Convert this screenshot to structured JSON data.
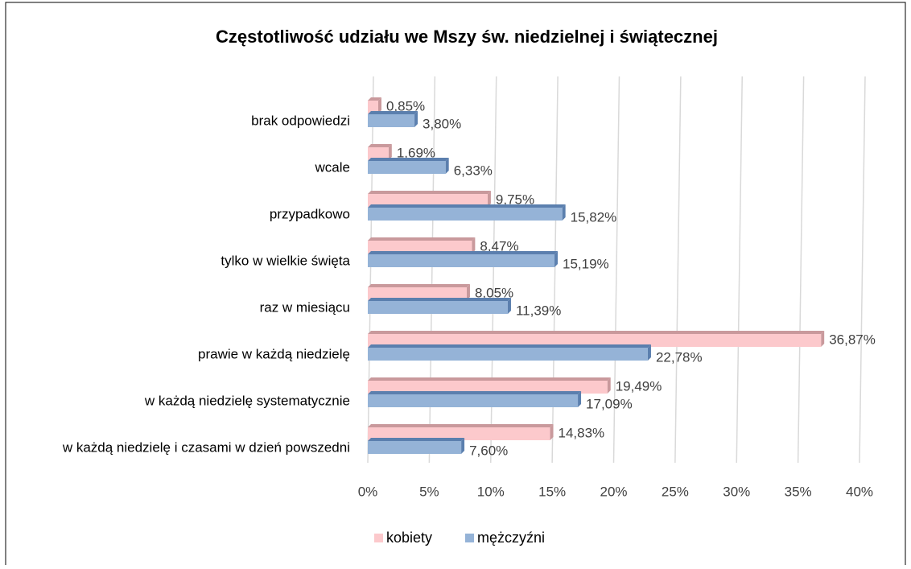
{
  "chart_data": {
    "type": "bar",
    "orientation": "horizontal",
    "title": "Częstotliwość udziału we Mszy św. niedzielnej i świątecznej",
    "categories": [
      "brak odpowiedzi",
      "wcale",
      "przypadkowo",
      "tylko w wielkie święta",
      "raz w miesiącu",
      "prawie w każdą niedzielę",
      "w każdą niedzielę systematycznie",
      "w każdą niedzielę i czasami w dzień powszedni"
    ],
    "series": [
      {
        "name": "kobiety",
        "color": "#fcc9cc",
        "values": [
          0.85,
          1.69,
          9.75,
          8.47,
          8.05,
          36.87,
          19.49,
          14.83
        ],
        "value_labels": [
          "0,85%",
          "1,69%",
          "9,75%",
          "8,47%",
          "8,05%",
          "36,87%",
          "19,49%",
          "14,83%"
        ]
      },
      {
        "name": "mężczyźni",
        "color": "#95b3d7",
        "values": [
          3.8,
          6.33,
          15.82,
          15.19,
          11.39,
          22.78,
          17.09,
          7.6
        ],
        "value_labels": [
          "3,80%",
          "6,33%",
          "15,82%",
          "15,19%",
          "11,39%",
          "22,78%",
          "17,09%",
          "7,60%"
        ]
      }
    ],
    "xlim": [
      0,
      40
    ],
    "xticks": [
      {
        "value": 0,
        "label": "0%"
      },
      {
        "value": 5,
        "label": "5%"
      },
      {
        "value": 10,
        "label": "10%"
      },
      {
        "value": 15,
        "label": "15%"
      },
      {
        "value": 20,
        "label": "20%"
      },
      {
        "value": 25,
        "label": "25%"
      },
      {
        "value": 30,
        "label": "30%"
      },
      {
        "value": 35,
        "label": "35%"
      },
      {
        "value": 40,
        "label": "40%"
      }
    ],
    "grid": true,
    "legend": "bottom"
  }
}
